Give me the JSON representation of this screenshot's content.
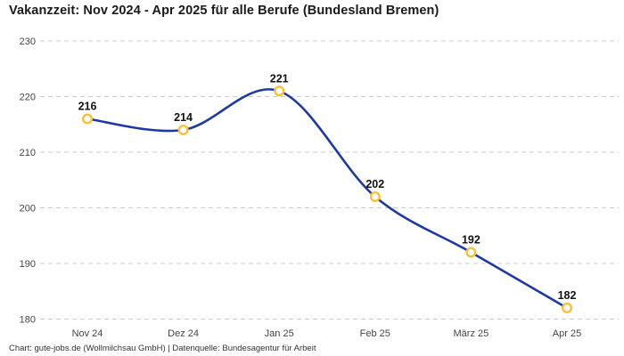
{
  "header": {
    "title": "Vakanzzeit: Nov 2024 - Apr 2025 für alle Berufe (Bundesland Bremen)"
  },
  "footer": {
    "credit": "Chart: gute-jobs.de (Wollmilchsau GmbH) | Datenquelle: Bundesagentur für Arbeit"
  },
  "chart_data": {
    "type": "line",
    "title": "Vakanzzeit: Nov 2024 - Apr 2025 für alle Berufe (Bundesland Bremen)",
    "categories": [
      "Nov 24",
      "Dez 24",
      "Jan 25",
      "Feb 25",
      "März 25",
      "Apr 25"
    ],
    "series": [
      {
        "name": "Vakanzzeit",
        "values": [
          216,
          214,
          221,
          202,
          192,
          182
        ]
      }
    ],
    "data_labels": [
      216,
      214,
      221,
      202,
      192,
      182
    ],
    "yticks": [
      230,
      220,
      210,
      200,
      190,
      180
    ],
    "ylim": [
      180,
      230
    ],
    "xlabel": "",
    "ylabel": "",
    "grid": "horizontal-dashed",
    "legend_position": "none",
    "line_style": "smooth-spline",
    "colors": {
      "line": "#1e3a9e",
      "marker_ring": "#f9c03a",
      "marker_fill": "#ffffff",
      "gridline": "#cbcbcb",
      "tick_label": "#444444",
      "value_label": "#111111",
      "title": "#1a1a1a",
      "background": "#ffffff"
    }
  }
}
